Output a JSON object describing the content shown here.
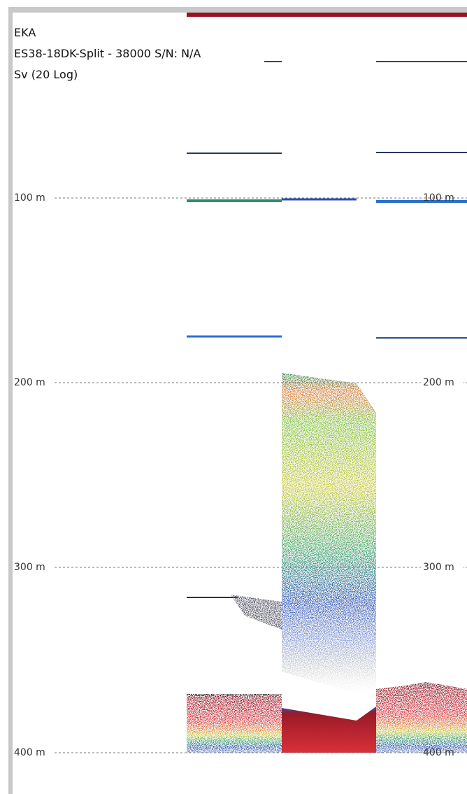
{
  "header": {
    "transducer": "EKA",
    "channel": "ES38-18DK-Split - 38000 S/N: N/A",
    "variable": "Sv (20 Log)"
  },
  "depth_labels": [
    "100 m",
    "200 m",
    "300 m",
    "400 m"
  ]
}
